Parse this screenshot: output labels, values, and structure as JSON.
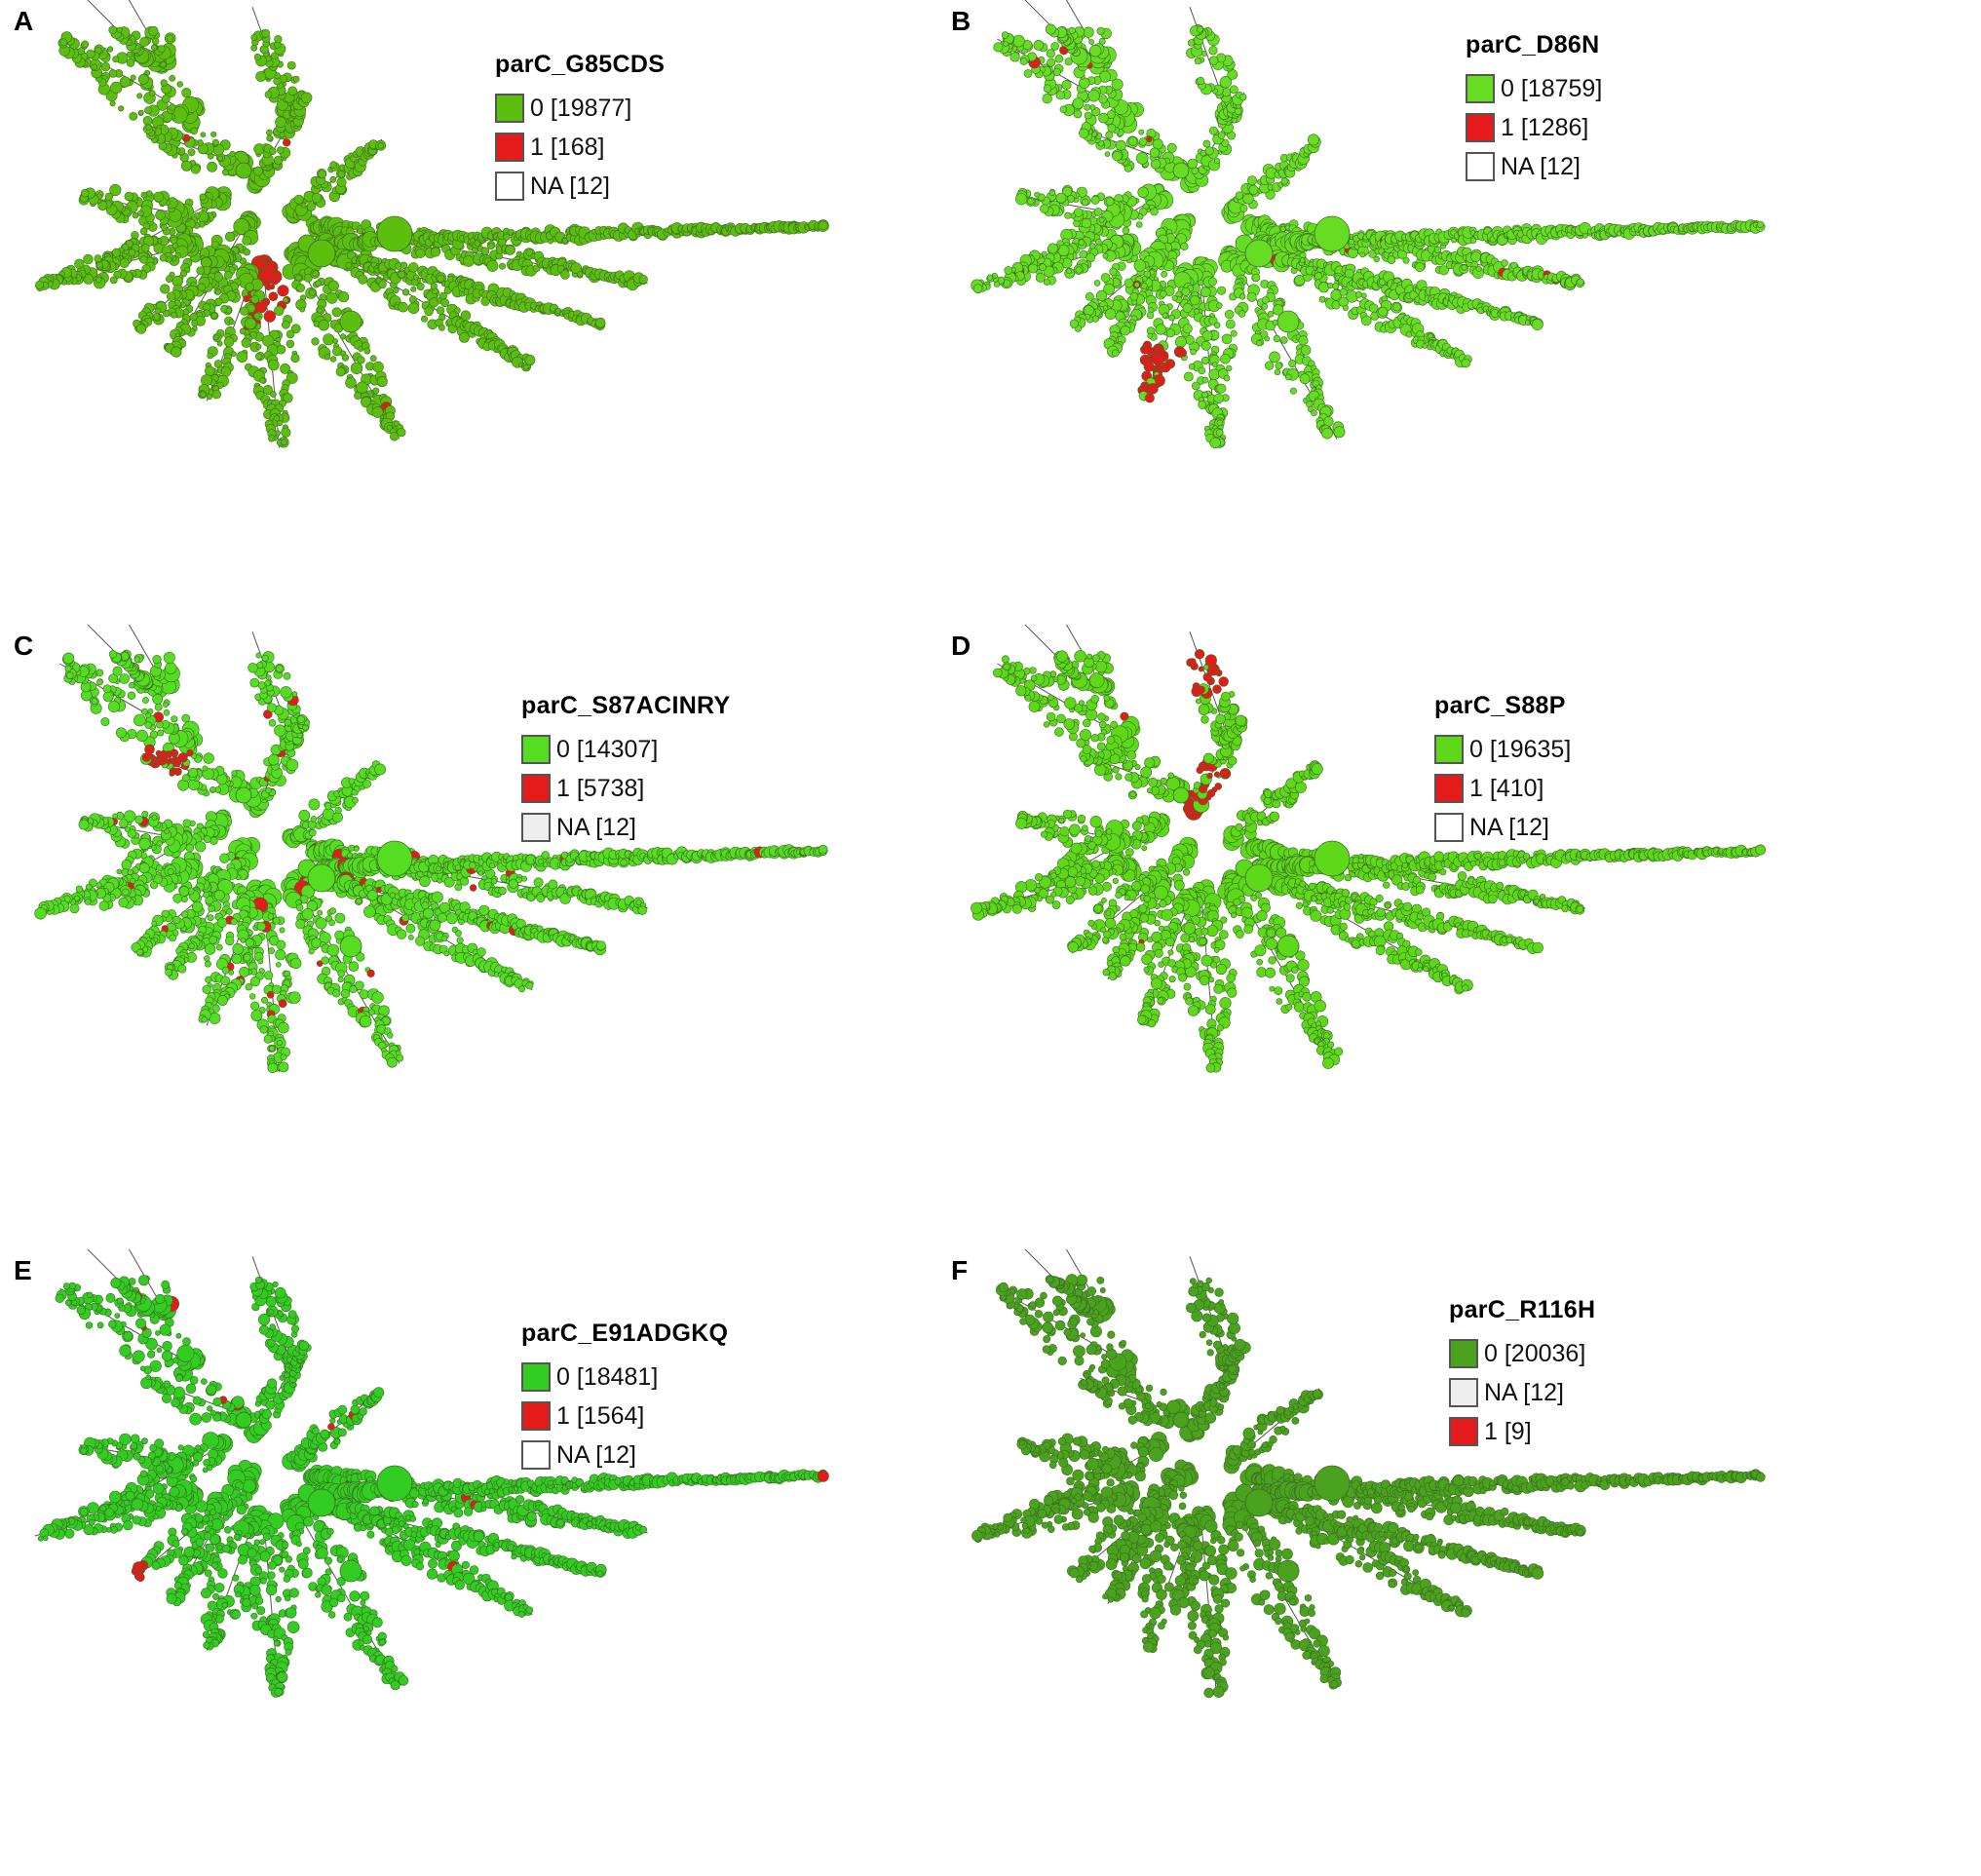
{
  "panels": [
    {
      "letter": "A",
      "title": "parC_G85CDS",
      "green": "#5cbf0f",
      "hotspots": [
        [
          0.52,
          0.05
        ],
        [
          0.3,
          0.3
        ],
        [
          0.8,
          0.3
        ]
      ],
      "hot_fraction": 0.03,
      "legend": [
        {
          "label": "0 [19877]",
          "color": "#5cbf0f"
        },
        {
          "label": "1 [168]",
          "color": "#e51b1b"
        },
        {
          "label": "NA [12]",
          "color": "#ffffff"
        }
      ]
    },
    {
      "letter": "B",
      "title": "parC_D86N",
      "green": "#66dd22",
      "hotspots": [
        [
          0.82,
          0.2
        ],
        [
          0.72,
          0.85
        ],
        [
          0.55,
          0.4
        ],
        [
          0.3,
          0.4
        ]
      ],
      "hot_fraction": 0.1,
      "legend": [
        {
          "label": "0 [18759]",
          "color": "#66dd22"
        },
        {
          "label": "1 [1286]",
          "color": "#e51b1b"
        },
        {
          "label": "NA [12]",
          "color": "#ffffff"
        }
      ]
    },
    {
      "letter": "C",
      "title": "parC_S87ACINRY",
      "green": "#55dd22",
      "hotspots": [
        [
          0.5,
          0.05
        ],
        [
          0.5,
          0.18
        ],
        [
          0.15,
          0.4
        ],
        [
          0.22,
          0.75
        ],
        [
          0.33,
          0.5
        ],
        [
          0.82,
          0.1
        ],
        [
          0.6,
          0.8
        ]
      ],
      "hot_fraction": 0.28,
      "legend": [
        {
          "label": "0 [14307]",
          "color": "#55dd22"
        },
        {
          "label": "1 [5738]",
          "color": "#e51b1b"
        },
        {
          "label": "NA [12]",
          "color": "#eeeeee"
        }
      ]
    },
    {
      "letter": "D",
      "title": "parC_S88P",
      "green": "#5ed91a",
      "hotspots": [
        [
          0.18,
          0.35
        ],
        [
          0.9,
          0.08
        ],
        [
          0.9,
          0.12
        ]
      ],
      "hot_fraction": 0.03,
      "legend": [
        {
          "label": "0 [19635]",
          "color": "#5ed91a"
        },
        {
          "label": "1 [410]",
          "color": "#e51b1b"
        },
        {
          "label": "NA [12]",
          "color": "#ffffff"
        }
      ]
    },
    {
      "letter": "E",
      "title": "parC_E91ADGKQ",
      "green": "#33cc22",
      "hotspots": [
        [
          0.75,
          0.85
        ],
        [
          0.88,
          0.12
        ],
        [
          0.9,
          0.25
        ],
        [
          0.6,
          0.55
        ]
      ],
      "hot_fraction": 0.1,
      "legend": [
        {
          "label": "0 [18481]",
          "color": "#33cc22"
        },
        {
          "label": "1 [1564]",
          "color": "#e51b1b"
        },
        {
          "label": "NA [12]",
          "color": "#ffffff"
        }
      ]
    },
    {
      "letter": "F",
      "title": "parC_R116H",
      "green": "#4aa21e",
      "hotspots": [],
      "hot_fraction": 0.0,
      "legend": [
        {
          "label": "0 [20036]",
          "color": "#4aa21e"
        },
        {
          "label": "NA [12]",
          "color": "#eeeeee"
        },
        {
          "label": "1 [9]",
          "color": "#e51b1b"
        }
      ]
    }
  ]
}
